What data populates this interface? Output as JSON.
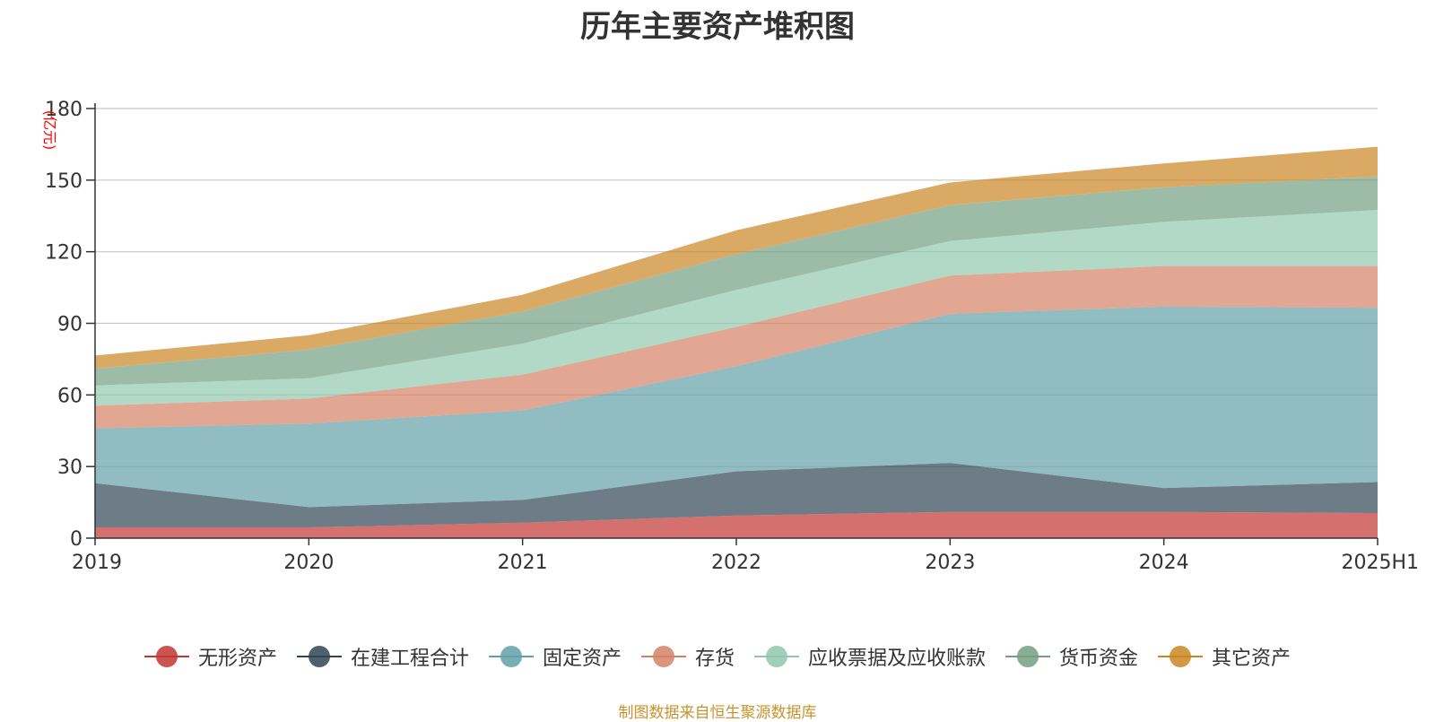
{
  "chart_data": {
    "type": "area",
    "stacked": true,
    "title": "历年主要资产堆积图",
    "ylabel": "(亿元)",
    "xlabel": "",
    "ylim": [
      0,
      180
    ],
    "yticks": [
      0,
      30,
      60,
      90,
      120,
      150,
      180
    ],
    "grid": true,
    "legend_position": "bottom",
    "categories": [
      "2019",
      "2020",
      "2021",
      "2022",
      "2023",
      "2024",
      "2025H1"
    ],
    "series": [
      {
        "name": "无形资产",
        "color": "#c23531",
        "values": [
          4.5,
          4.5,
          6.5,
          9.5,
          11,
          11,
          10.5
        ]
      },
      {
        "name": "在建工程合计",
        "color": "#2f4554",
        "values": [
          18.5,
          8.5,
          9.5,
          18.5,
          20.5,
          10,
          13
        ]
      },
      {
        "name": "固定资产",
        "color": "#61a0a8",
        "values": [
          23,
          35,
          37.5,
          44,
          62.5,
          76,
          73
        ]
      },
      {
        "name": "存货",
        "color": "#d48265",
        "values": [
          9.5,
          10.5,
          15,
          16.5,
          16,
          17,
          17.5
        ]
      },
      {
        "name": "应收票据及应收账款",
        "color": "#91c7ae",
        "values": [
          8.5,
          8.5,
          13,
          15.5,
          14.5,
          18.5,
          23.5
        ]
      },
      {
        "name": "货币资金",
        "color": "#749f83",
        "values": [
          7,
          12,
          13.5,
          15,
          15,
          14.5,
          14
        ]
      },
      {
        "name": "其它资产",
        "color": "#ca8622",
        "values": [
          5.5,
          6,
          7,
          10,
          9.5,
          10,
          12.5
        ]
      }
    ],
    "source": "制图数据来自恒生聚源数据库"
  }
}
